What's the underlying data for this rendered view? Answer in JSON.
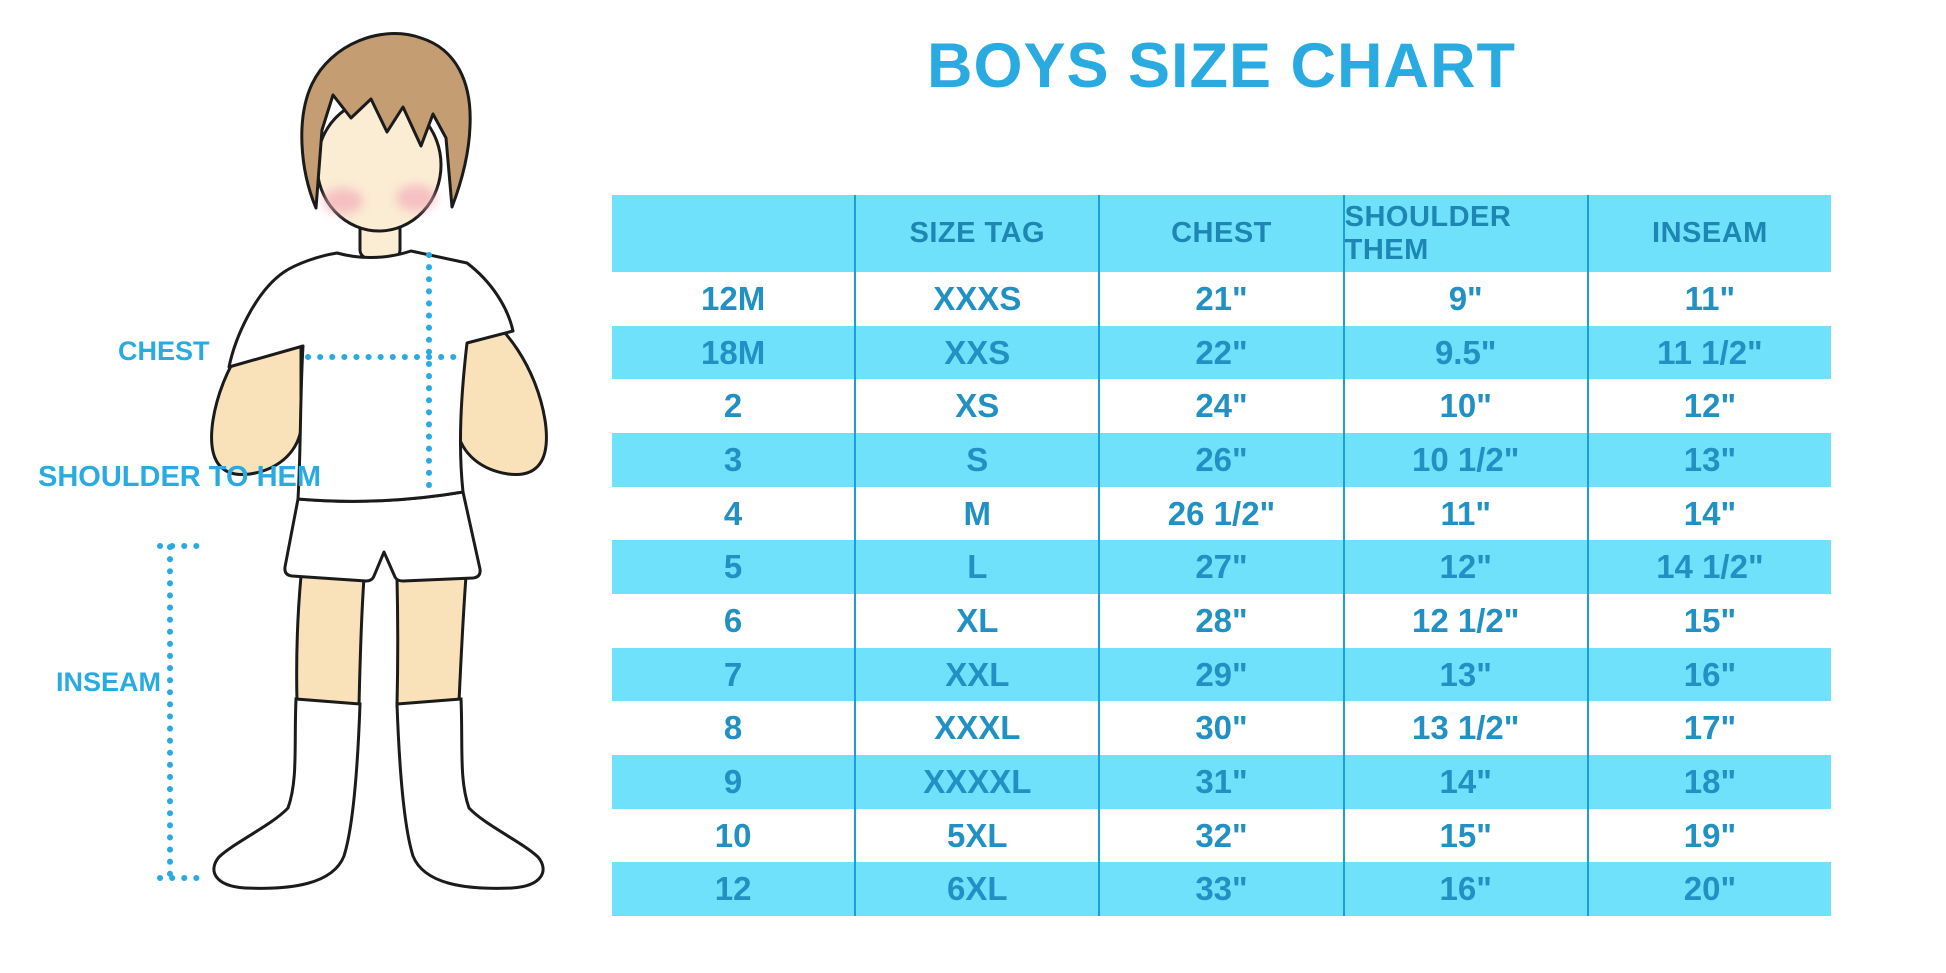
{
  "page": {
    "title": "BOYS SIZE CHART"
  },
  "colors": {
    "accent": "#29abe2",
    "band": "#70e1fa",
    "header_text": "#1d86b2",
    "cell_text": "#2191c4",
    "divider": "#1e9ed6",
    "skin": "#f9e2ba",
    "face": "#fbecd4",
    "hair": "#c49e72",
    "cheek": "#f2a8b8",
    "outline": "#1b1b1b"
  },
  "figure": {
    "labels": {
      "chest": "CHEST",
      "shoulder_to_hem": "SHOULDER TO HEM",
      "inseam": "INSEAM"
    }
  },
  "chart_data": {
    "type": "table",
    "title": "BOYS SIZE CHART",
    "columns": [
      "",
      "SIZE TAG",
      "CHEST",
      "SHOULDER THEM",
      "INSEAM"
    ],
    "rows": [
      [
        "12M",
        "XXXS",
        "21\"",
        "9\"",
        "11\""
      ],
      [
        "18M",
        "XXS",
        "22\"",
        "9.5\"",
        "11 1/2\""
      ],
      [
        "2",
        "XS",
        "24\"",
        "10\"",
        "12\""
      ],
      [
        "3",
        "S",
        "26\"",
        "10 1/2\"",
        "13\""
      ],
      [
        "4",
        "M",
        "26 1/2\"",
        "11\"",
        "14\""
      ],
      [
        "5",
        "L",
        "27\"",
        "12\"",
        "14 1/2\""
      ],
      [
        "6",
        "XL",
        "28\"",
        "12 1/2\"",
        "15\""
      ],
      [
        "7",
        "XXL",
        "29\"",
        "13\"",
        "16\""
      ],
      [
        "8",
        "XXXL",
        "30\"",
        "13 1/2\"",
        "17\""
      ],
      [
        "9",
        "XXXXL",
        "31\"",
        "14\"",
        "18\""
      ],
      [
        "10",
        "5XL",
        "32\"",
        "15\"",
        "19\""
      ],
      [
        "12",
        "6XL",
        "33\"",
        "16\"",
        "20\""
      ]
    ],
    "layout": {
      "header_band": true,
      "zebra_stripes": true,
      "grid": "vertical-dividers-only"
    }
  }
}
